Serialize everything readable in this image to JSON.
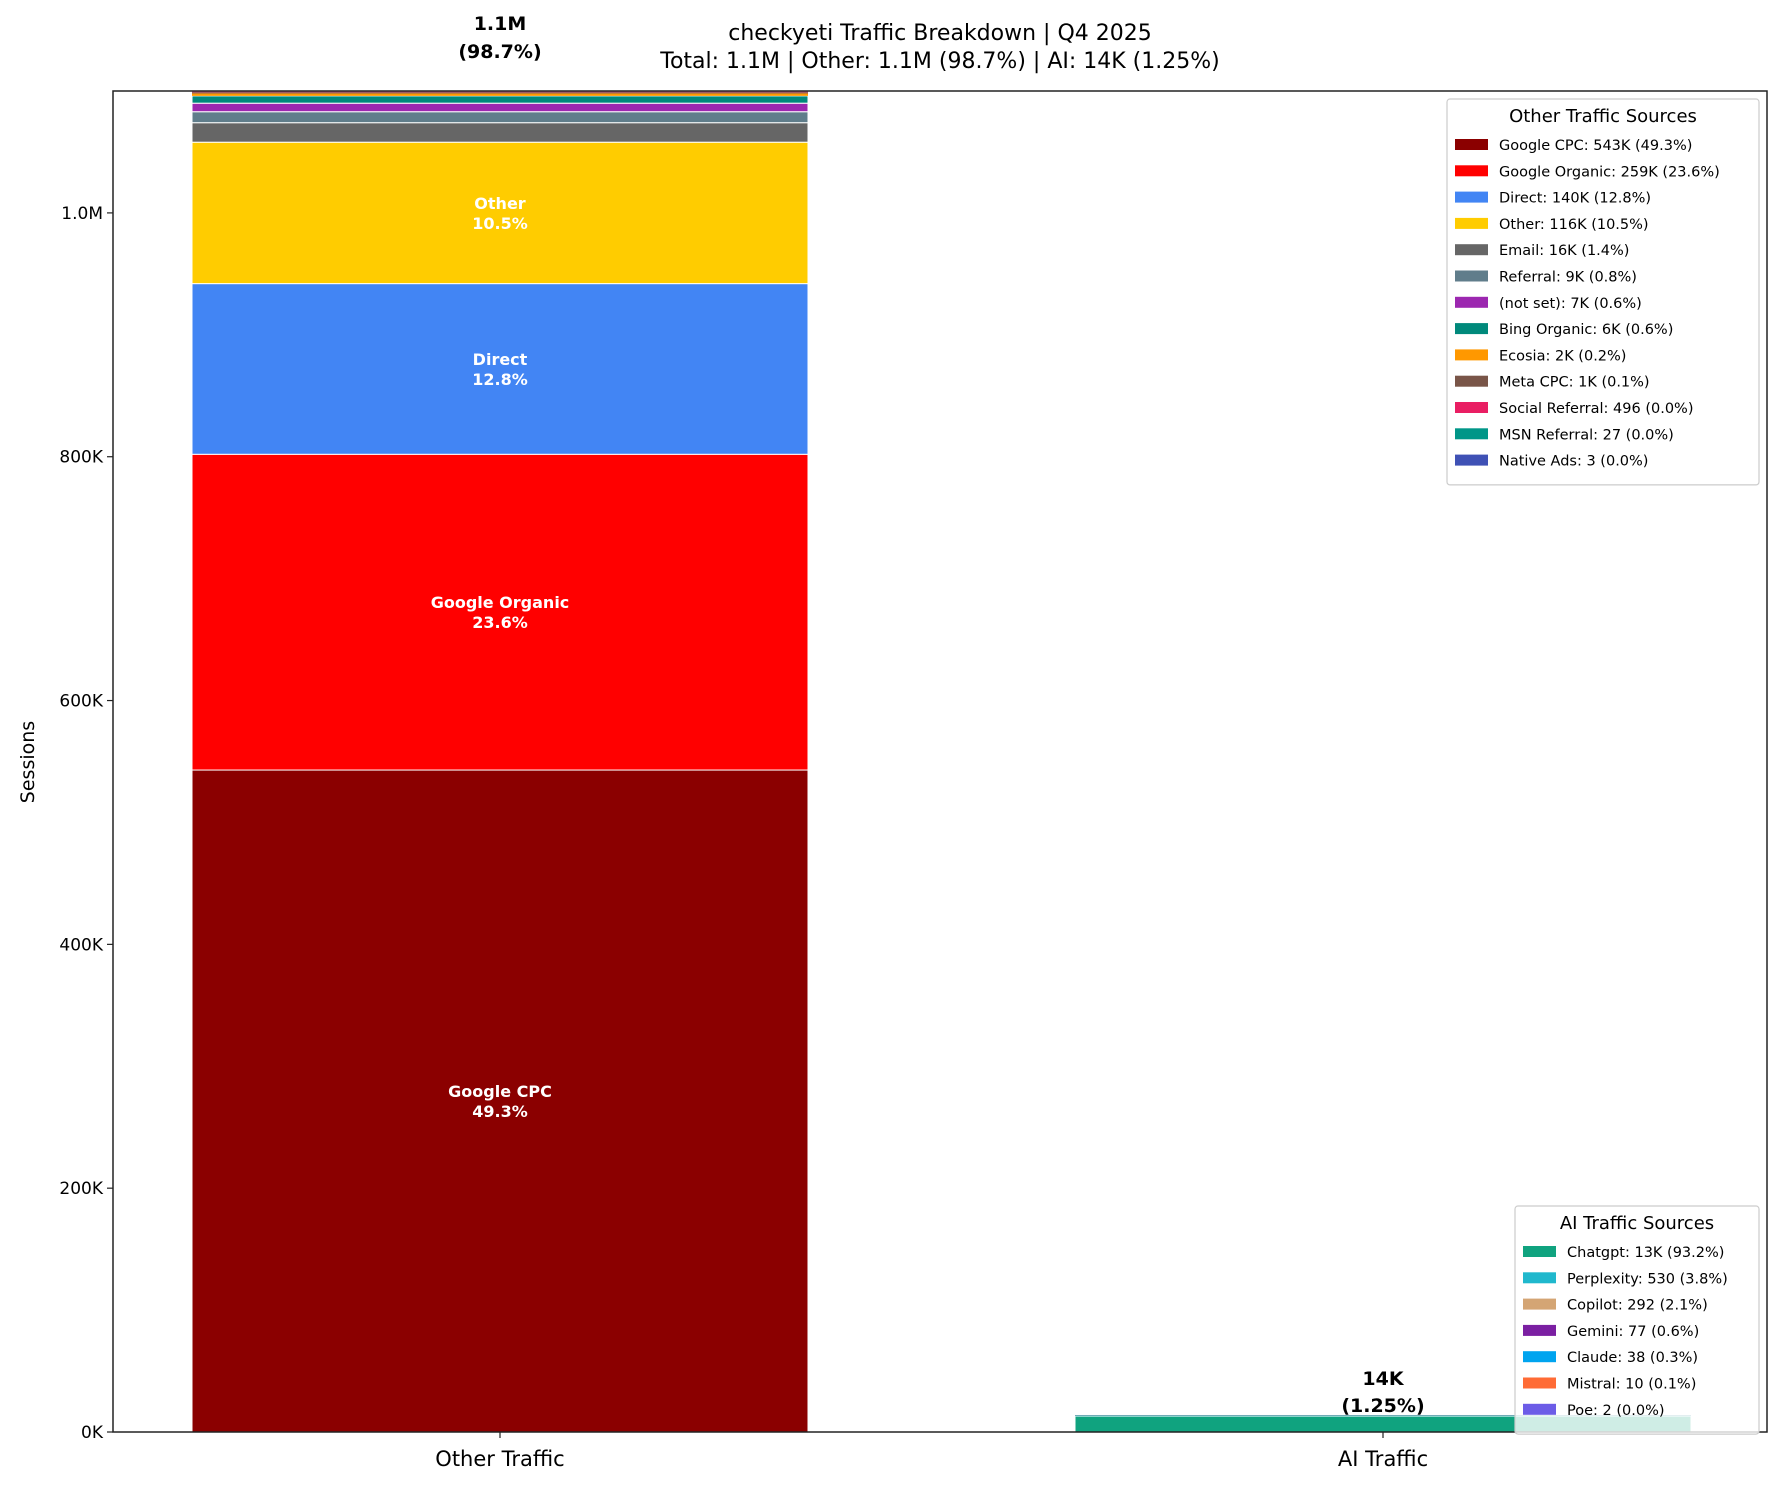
{
  "chart_data": {
    "type": "bar",
    "stacked": true,
    "title": "checkyeti Traffic Breakdown | Q4 2025",
    "subtitle": "Total: 1.1M | Other: 1.1M (98.7%) | AI: 14K (1.25%)",
    "xlabel": "",
    "ylabel": "Sessions",
    "ylim": [
      0,
      1100000
    ],
    "yticks": [
      0,
      200000,
      400000,
      600000,
      800000,
      1000000
    ],
    "ytick_labels": [
      "0K",
      "200K",
      "400K",
      "600K",
      "800K",
      "1.0M"
    ],
    "categories": [
      "Other Traffic",
      "AI Traffic"
    ],
    "grid": false,
    "bar_totals": [
      {
        "value": "1.1M",
        "pct": "(98.7%)"
      },
      {
        "value": "14K",
        "pct": "(1.25%)"
      }
    ],
    "stacks": [
      {
        "category": "Other Traffic",
        "legend_title": "Other Traffic Sources",
        "legend_placement": "top-right",
        "series": [
          {
            "name": "Google CPC",
            "value": 543000,
            "pct": 49.3,
            "color": "#8b0000",
            "legend": "Google CPC: 543K (49.3%)",
            "bar_label": [
              "Google CPC",
              "49.3%"
            ]
          },
          {
            "name": "Google Organic",
            "value": 259000,
            "pct": 23.6,
            "color": "#ff0000",
            "legend": "Google Organic: 259K (23.6%)",
            "bar_label": [
              "Google Organic",
              "23.6%"
            ]
          },
          {
            "name": "Direct",
            "value": 140000,
            "pct": 12.8,
            "color": "#4285f4",
            "legend": "Direct: 140K (12.8%)",
            "bar_label": [
              "Direct",
              "12.8%"
            ]
          },
          {
            "name": "Other",
            "value": 116000,
            "pct": 10.5,
            "color": "#ffcc00",
            "legend": "Other: 116K (10.5%)",
            "bar_label": [
              "Other",
              "10.5%"
            ]
          },
          {
            "name": "Email",
            "value": 16000,
            "pct": 1.4,
            "color": "#666666",
            "legend": "Email: 16K (1.4%)"
          },
          {
            "name": "Referral",
            "value": 9000,
            "pct": 0.8,
            "color": "#607d8b",
            "legend": "Referral: 9K (0.8%)"
          },
          {
            "name": "(not set)",
            "value": 7000,
            "pct": 0.6,
            "color": "#9c27b0",
            "legend": "(not set): 7K (0.6%)"
          },
          {
            "name": "Bing Organic",
            "value": 6000,
            "pct": 0.6,
            "color": "#00897b",
            "legend": "Bing Organic: 6K (0.6%)"
          },
          {
            "name": "Ecosia",
            "value": 2000,
            "pct": 0.2,
            "color": "#ff9800",
            "legend": "Ecosia: 2K (0.2%)"
          },
          {
            "name": "Meta CPC",
            "value": 1000,
            "pct": 0.1,
            "color": "#795548",
            "legend": "Meta CPC: 1K (0.1%)"
          },
          {
            "name": "Social Referral",
            "value": 496,
            "pct": 0.0,
            "color": "#e91e63",
            "legend": "Social Referral: 496 (0.0%)"
          },
          {
            "name": "MSN Referral",
            "value": 27,
            "pct": 0.0,
            "color": "#009688",
            "legend": "MSN Referral: 27 (0.0%)"
          },
          {
            "name": "Native Ads",
            "value": 3,
            "pct": 0.0,
            "color": "#3f51b5",
            "legend": "Native Ads: 3 (0.0%)"
          }
        ]
      },
      {
        "category": "AI Traffic",
        "legend_title": "AI Traffic Sources",
        "legend_placement": "lower-right",
        "series": [
          {
            "name": "Chatgpt",
            "value": 13000,
            "pct": 93.2,
            "color": "#10a37f",
            "legend": "Chatgpt: 13K (93.2%)"
          },
          {
            "name": "Perplexity",
            "value": 530,
            "pct": 3.8,
            "color": "#20b8cd",
            "legend": "Perplexity: 530 (3.8%)"
          },
          {
            "name": "Copilot",
            "value": 292,
            "pct": 2.1,
            "color": "#d4a574",
            "legend": "Copilot: 292 (2.1%)"
          },
          {
            "name": "Gemini",
            "value": 77,
            "pct": 0.6,
            "color": "#7b1fa2",
            "legend": "Gemini: 77 (0.6%)"
          },
          {
            "name": "Claude",
            "value": 38,
            "pct": 0.3,
            "color": "#00a4ef",
            "legend": "Claude: 38 (0.3%)"
          },
          {
            "name": "Mistral",
            "value": 10,
            "pct": 0.1,
            "color": "#ff6b35",
            "legend": "Mistral: 10 (0.1%)"
          },
          {
            "name": "Poe",
            "value": 2,
            "pct": 0.0,
            "color": "#6c5ce7",
            "legend": "Poe: 2 (0.0%)"
          }
        ]
      }
    ]
  }
}
